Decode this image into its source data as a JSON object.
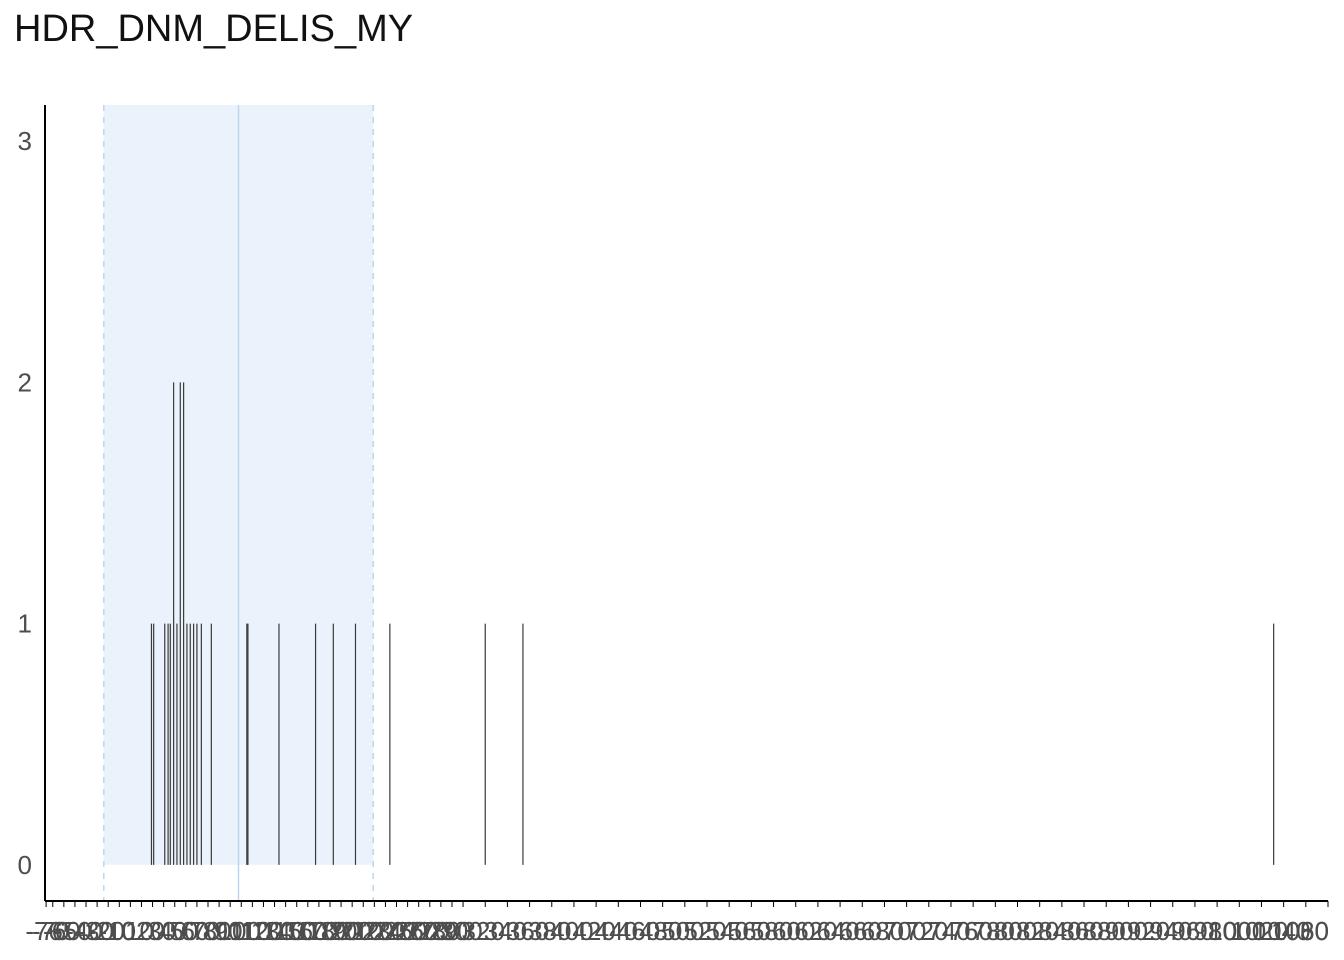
{
  "chart_data": {
    "type": "bar",
    "title": "HDR_DNM_DELIS_MY",
    "xlabel": "",
    "ylabel": "",
    "xlim": [
      -77,
      1080
    ],
    "ylim": [
      -0.15,
      3.15
    ],
    "yticks": [
      0,
      1,
      2,
      3
    ],
    "grid": false,
    "legend": "none",
    "band": {
      "start": -24,
      "end": 219,
      "mean": 97.5
    },
    "x_tick_labels": [
      "-76",
      "-70",
      "-60",
      "-50",
      "-40",
      "-30",
      "-20",
      "-10",
      "0",
      "10",
      "20",
      "30",
      "40",
      "50",
      "60",
      "70",
      "80",
      "90",
      "100",
      "110",
      "120",
      "130",
      "140",
      "150",
      "160",
      "170",
      "180",
      "190",
      "200",
      "210",
      "220",
      "230",
      "240",
      "250",
      "260",
      "270",
      "280",
      "290",
      "300",
      "320",
      "340",
      "360",
      "380",
      "400",
      "420",
      "440",
      "460",
      "480",
      "500",
      "520",
      "540",
      "560",
      "580",
      "600",
      "620",
      "640",
      "660",
      "680",
      "700",
      "720",
      "740",
      "760",
      "780",
      "800",
      "820",
      "840",
      "860",
      "880",
      "900",
      "920",
      "940",
      "960",
      "980",
      "1000",
      "1020",
      "1040",
      "1060",
      "1080"
    ],
    "series": [
      {
        "x": [
          19,
          21,
          31,
          34,
          36,
          39,
          42,
          45,
          48,
          51,
          54,
          57,
          60,
          64,
          73,
          105,
          106,
          134,
          167,
          183,
          203,
          234,
          320,
          354,
          1031
        ],
        "values": [
          1,
          1,
          1,
          1,
          1,
          2,
          1,
          2,
          2,
          1,
          1,
          1,
          1,
          1,
          1,
          1,
          1,
          1,
          1,
          1,
          1,
          1,
          1,
          1,
          1
        ]
      }
    ]
  },
  "colors": {
    "band_fill": "#eaf3fc",
    "band_line": "#b9d7f0",
    "bar": "#3a3a3a",
    "axis": "#000000"
  }
}
